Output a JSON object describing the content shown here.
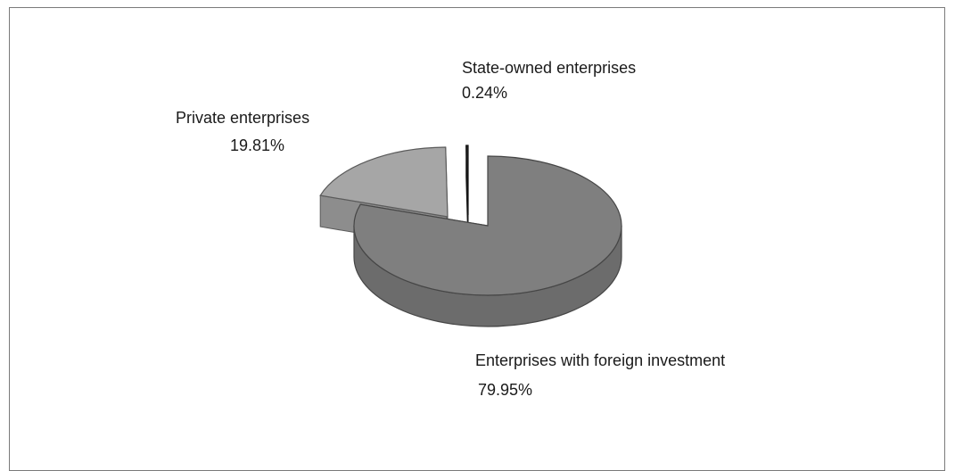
{
  "chart_data": {
    "type": "pie",
    "title": "",
    "slices": [
      {
        "label": "Enterprises with foreign investment",
        "value": 79.95,
        "value_label": "79.95%",
        "color": "#7f7f7f"
      },
      {
        "label": "Private enterprises",
        "value": 19.81,
        "value_label": "19.81%",
        "color": "#a6a6a6"
      },
      {
        "label": "State-owned enterprises",
        "value": 0.24,
        "value_label": "0.24%",
        "color": "#262626"
      }
    ],
    "legend": "none",
    "style": "3d-exploded"
  }
}
